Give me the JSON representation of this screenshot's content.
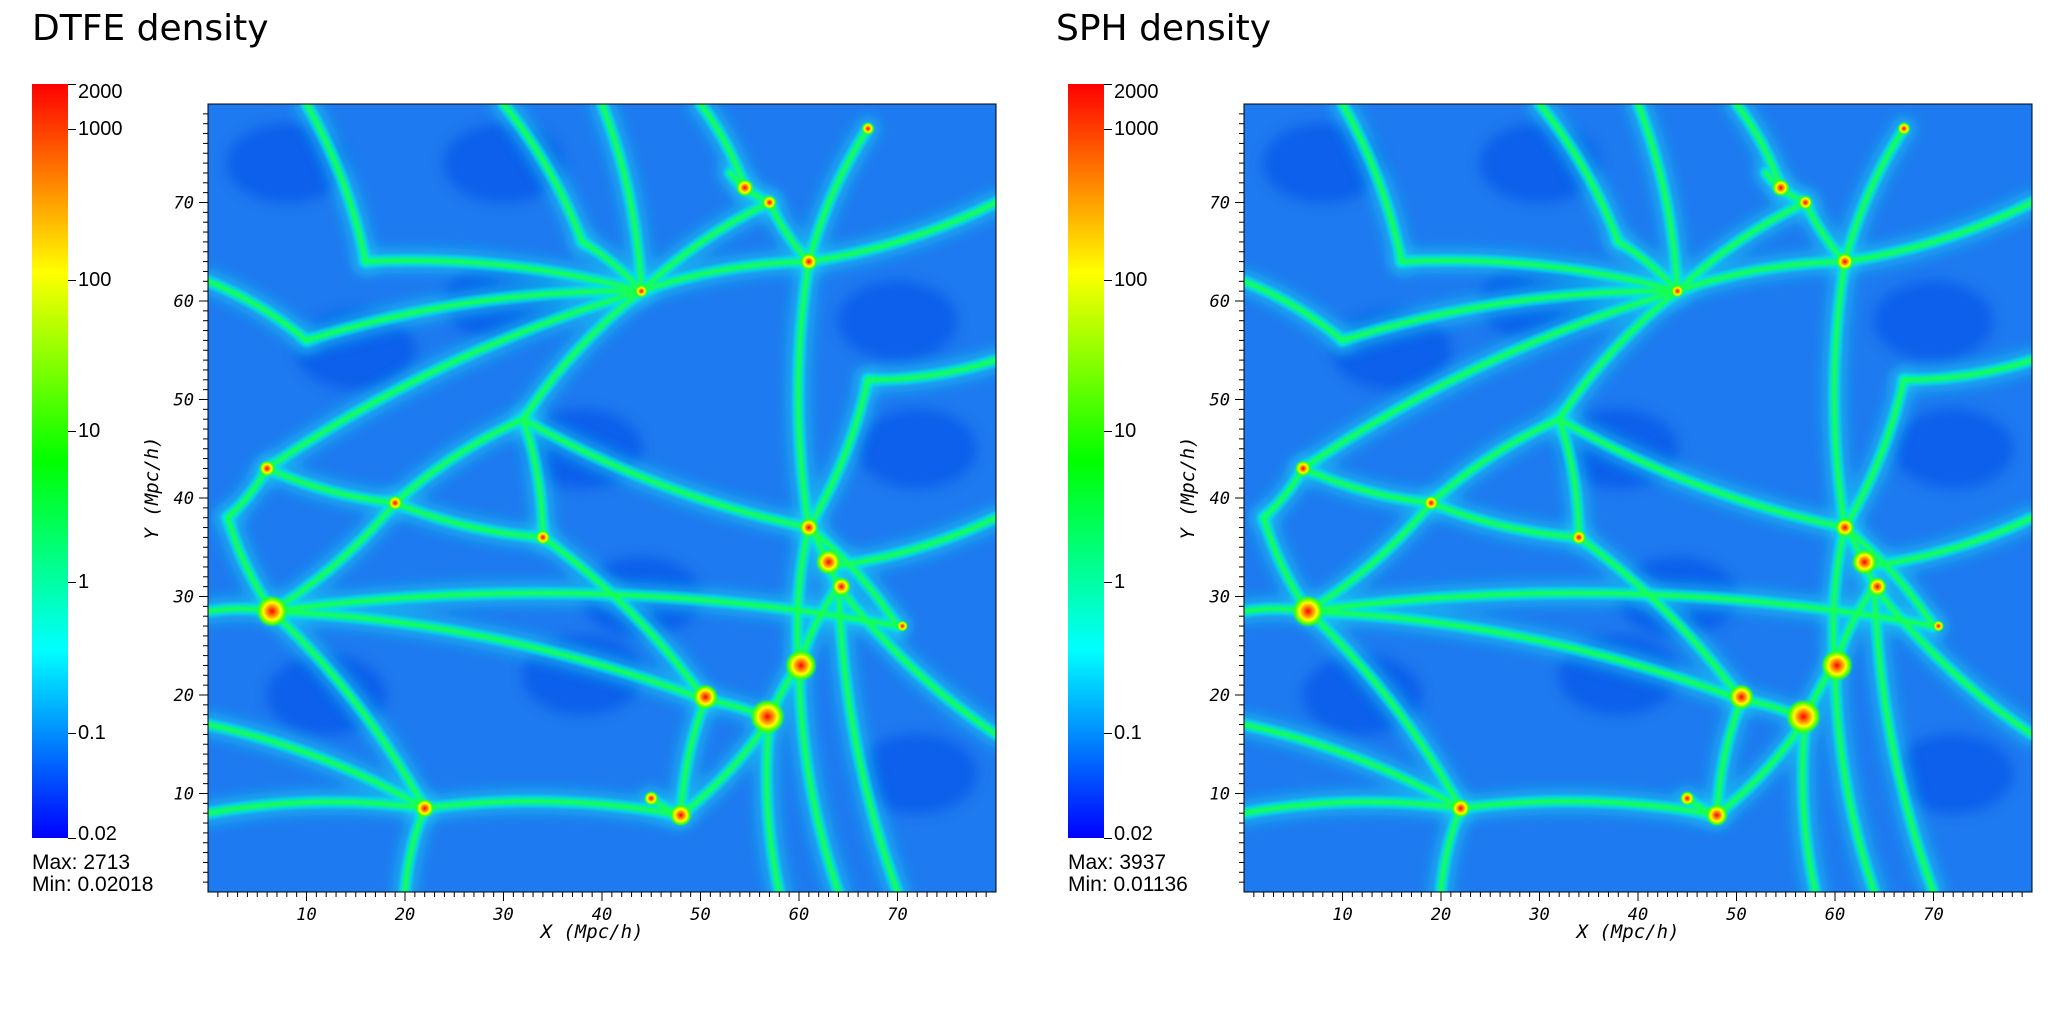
{
  "chart_data": [
    {
      "type": "heatmap",
      "title": "DTFE density",
      "xlabel": "X (Mpc/h)",
      "ylabel": "Y (Mpc/h)",
      "xlim": [
        0,
        80
      ],
      "ylim": [
        0,
        80
      ],
      "x_ticks": [
        10,
        20,
        30,
        40,
        50,
        60,
        70
      ],
      "y_ticks": [
        10,
        20,
        30,
        40,
        50,
        60,
        70
      ],
      "colorbar": {
        "scale": "log",
        "range": [
          0.02,
          2000
        ],
        "ticks": [
          "2000",
          "1000",
          "100",
          "10",
          "1",
          "0.1",
          "0.02"
        ],
        "colormap": [
          "#0000ff",
          "#00ffff",
          "#00ff00",
          "#ffff00",
          "#ff0000"
        ]
      },
      "stats": {
        "max": "Max: 2713",
        "min": "Min: 0.02018"
      }
    },
    {
      "type": "heatmap",
      "title": "SPH density",
      "xlabel": "X (Mpc/h)",
      "ylabel": "Y (Mpc/h)",
      "xlim": [
        0,
        80
      ],
      "ylim": [
        0,
        80
      ],
      "x_ticks": [
        10,
        20,
        30,
        40,
        50,
        60,
        70
      ],
      "y_ticks": [
        10,
        20,
        30,
        40,
        50,
        60,
        70
      ],
      "colorbar": {
        "scale": "log",
        "range": [
          0.02,
          2000
        ],
        "ticks": [
          "2000",
          "1000",
          "100",
          "10",
          "1",
          "0.1",
          "0.02"
        ],
        "colormap": [
          "#0000ff",
          "#00ffff",
          "#00ff00",
          "#ffff00",
          "#ff0000"
        ]
      },
      "stats": {
        "max": "Max:  3937",
        "min": "Min:  0.01136"
      }
    }
  ]
}
